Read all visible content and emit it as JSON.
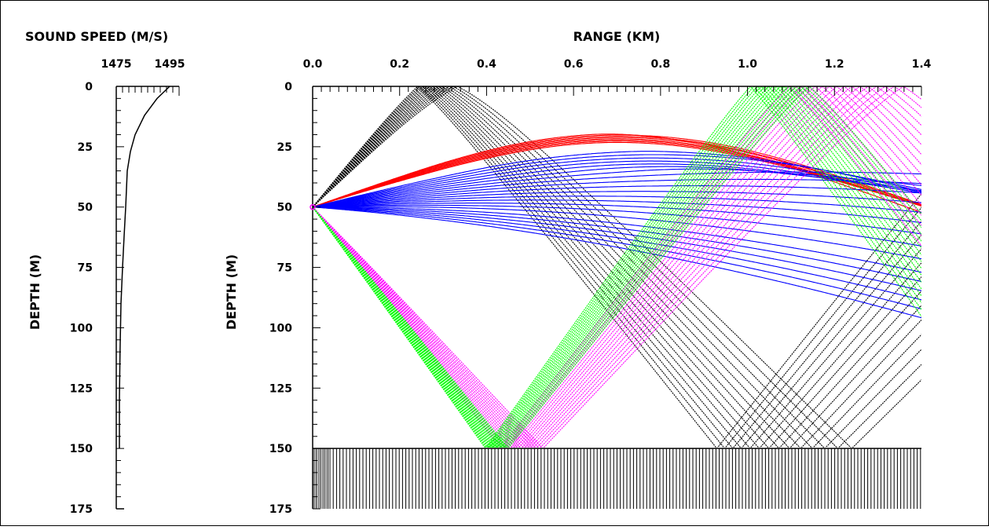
{
  "chart_data": [
    {
      "type": "line",
      "title": "",
      "xlabel": "SOUND SPEED (M/S)",
      "ylabel": "DEPTH (M)",
      "x_ticks": [
        "1475",
        "1495"
      ],
      "y_ticks": [
        "0",
        "25",
        "50",
        "75",
        "100",
        "125",
        "150",
        "175"
      ],
      "xlim": [
        1475,
        1495
      ],
      "ylim": [
        0,
        175
      ],
      "y_inverted": true,
      "series": [
        {
          "color": "#000000",
          "points": [
            [
              1492,
              0
            ],
            [
              1488,
              5
            ],
            [
              1484,
              12
            ],
            [
              1481,
              20
            ],
            [
              1479.5,
              27
            ],
            [
              1478.5,
              35
            ],
            [
              1478,
              50
            ],
            [
              1477.5,
              62
            ],
            [
              1477,
              75
            ],
            [
              1476.5,
              90
            ],
            [
              1476.2,
              110
            ],
            [
              1476,
              130
            ],
            [
              1476,
              150
            ]
          ]
        }
      ]
    },
    {
      "type": "line",
      "title": "",
      "xlabel": "RANGE (KM)",
      "ylabel": "DEPTH (M)",
      "x_ticks": [
        "0.0",
        "0.2",
        "0.4",
        "0.6",
        "0.8",
        "1.0",
        "1.2",
        "1.4"
      ],
      "y_ticks": [
        "0",
        "25",
        "50",
        "75",
        "100",
        "125",
        "150",
        "175"
      ],
      "xlim": [
        0,
        1.4
      ],
      "ylim": [
        0,
        175
      ],
      "y_inverted": true,
      "bottom_depth": 150,
      "source": {
        "range": 0,
        "depth": 50
      },
      "ray_fans": [
        {
          "color": "#000000",
          "angle_from": -12.4,
          "angle_to": -9.6,
          "count": 14
        },
        {
          "color": "#ff0000",
          "angle_from": -3.7,
          "angle_to": -3.2,
          "count": 8
        },
        {
          "color": "#0000ff",
          "angle_from": -2.6,
          "angle_to": 0.8,
          "count": 22
        },
        {
          "color": "#ff00ff",
          "angle_from": 10.4,
          "angle_to": 12.8,
          "count": 16
        },
        {
          "color": "#00ff00",
          "angle_from": 12.3,
          "angle_to": 13.9,
          "count": 16
        }
      ]
    }
  ]
}
